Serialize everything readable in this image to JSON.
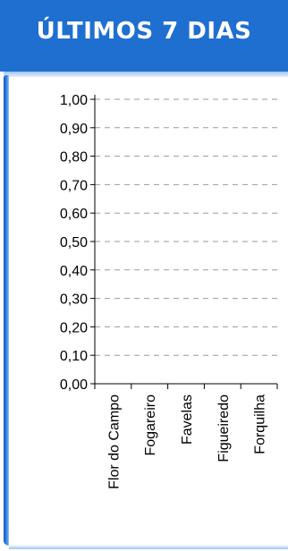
{
  "header": {
    "title": "ÚLTIMOS 7 DIAS"
  },
  "colors": {
    "header_bg": "#1f6fd1",
    "grid": "#9a9a9a",
    "axis": "#000000"
  },
  "chart_data": {
    "type": "bar",
    "title": "",
    "xlabel": "",
    "ylabel": "",
    "categories": [
      "Flor do Campo",
      "Fogareiro",
      "Favelas",
      "Figueiredo",
      "Forquilha"
    ],
    "values": [
      0,
      0,
      0,
      0,
      0
    ],
    "ylim": [
      0,
      1
    ],
    "yticks": [
      "0,00",
      "0,10",
      "0,20",
      "0,30",
      "0,40",
      "0,50",
      "0,60",
      "0,70",
      "0,80",
      "0,90",
      "1,00"
    ],
    "grid": true
  }
}
